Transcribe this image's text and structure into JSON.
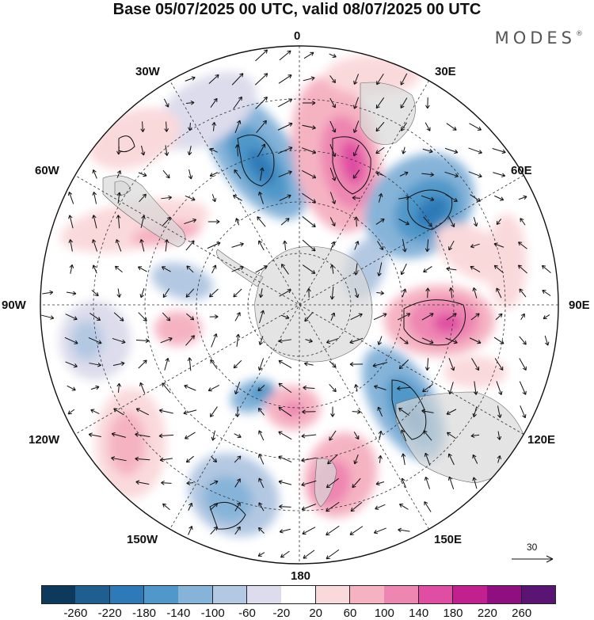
{
  "title": "Base 05/07/2025 00 UTC, valid 08/07/2025 00 UTC",
  "brand": "MODES",
  "brand_mark": "®",
  "longitude_labels": {
    "0": "0",
    "30E": "30E",
    "60E": "60E",
    "90E": "90E",
    "120E": "120E",
    "150E": "150E",
    "180": "180",
    "150W": "150W",
    "120W": "120W",
    "90W": "90W",
    "60W": "60W",
    "30W": "30W"
  },
  "reference_vector_label": "30",
  "colorbar": {
    "colors": [
      "#0d3a5c",
      "#1f5f8f",
      "#2e7ab8",
      "#4f98c9",
      "#86b4d9",
      "#b3c8e2",
      "#dcdcec",
      "#ffffff",
      "#fad9db",
      "#f5b3c2",
      "#ee86b2",
      "#df4ea2",
      "#c21f8f",
      "#8f0f80",
      "#5a1473"
    ],
    "ticks": [
      "-260",
      "-220",
      "-180",
      "-140",
      "-100",
      "-60",
      "-20",
      "20",
      "60",
      "100",
      "140",
      "180",
      "220",
      "260"
    ]
  },
  "field_colors": {
    "land": "#d9d9d9",
    "ocean": "#ffffff",
    "graticule": "#333333",
    "coast": "#666666"
  }
}
